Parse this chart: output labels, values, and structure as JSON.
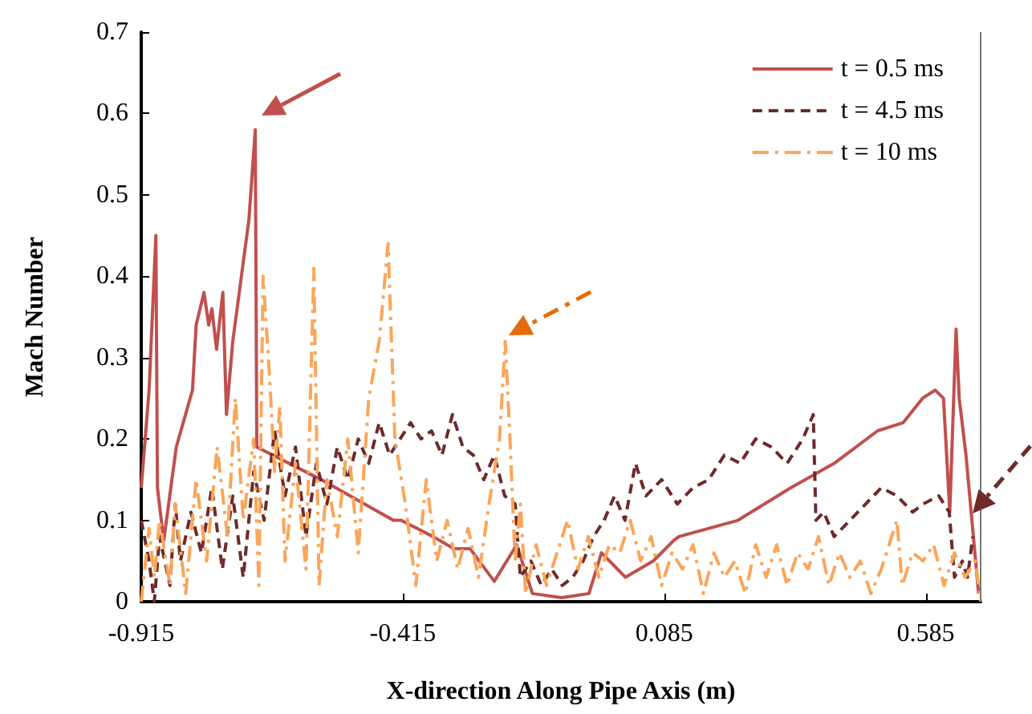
{
  "chart_data": {
    "type": "line",
    "xlabel": "X-direction Along Pipe Axis (m)",
    "ylabel": "Mach Number",
    "xlim": [
      -0.915,
      0.69
    ],
    "xticks": [
      -0.915,
      -0.415,
      0.085,
      0.585
    ],
    "ylim": [
      0,
      0.7
    ],
    "yticks": [
      0,
      0.1,
      0.2,
      0.3,
      0.4,
      0.5,
      0.6,
      0.7
    ],
    "grid": false,
    "legend": "top right",
    "marker": "none",
    "series": [
      {
        "name": "t = 0.5 ms",
        "color": "#c0504d",
        "line_style": "solid",
        "x": [
          -0.915,
          -0.9,
          -0.887,
          -0.884,
          -0.872,
          -0.848,
          -0.817,
          -0.81,
          -0.795,
          -0.786,
          -0.78,
          -0.771,
          -0.759,
          -0.752,
          -0.74,
          -0.709,
          -0.697,
          -0.694,
          -0.571,
          -0.433,
          -0.418,
          -0.357,
          -0.317,
          -0.286,
          -0.24,
          -0.197,
          -0.167,
          -0.111,
          -0.059,
          -0.035,
          0.011,
          0.064,
          0.103,
          0.113,
          0.226,
          0.327,
          0.41,
          0.493,
          0.542,
          0.579,
          0.603,
          0.619,
          0.631,
          0.643,
          0.649,
          0.662,
          0.686
        ],
        "values": [
          0.14,
          0.26,
          0.45,
          0.14,
          0.075,
          0.19,
          0.26,
          0.34,
          0.38,
          0.34,
          0.36,
          0.31,
          0.38,
          0.23,
          0.32,
          0.47,
          0.58,
          0.19,
          0.15,
          0.1,
          0.1,
          0.08,
          0.065,
          0.065,
          0.025,
          0.07,
          0.01,
          0.005,
          0.01,
          0.06,
          0.03,
          0.05,
          0.075,
          0.08,
          0.1,
          0.14,
          0.17,
          0.21,
          0.22,
          0.25,
          0.26,
          0.25,
          0.11,
          0.335,
          0.25,
          0.18,
          0.01
        ]
      },
      {
        "name": "t = 4.5 ms",
        "color": "#6e2a2a",
        "line_style": "dashed",
        "x": [
          -0.915,
          -0.9,
          -0.89,
          -0.88,
          -0.86,
          -0.85,
          -0.84,
          -0.82,
          -0.8,
          -0.78,
          -0.76,
          -0.74,
          -0.72,
          -0.7,
          -0.68,
          -0.66,
          -0.64,
          -0.62,
          -0.6,
          -0.58,
          -0.56,
          -0.54,
          -0.52,
          -0.5,
          -0.48,
          -0.46,
          -0.44,
          -0.42,
          -0.4,
          -0.38,
          -0.36,
          -0.34,
          -0.32,
          -0.3,
          -0.28,
          -0.26,
          -0.24,
          -0.22,
          -0.2,
          -0.19,
          -0.17,
          -0.15,
          -0.13,
          -0.11,
          -0.09,
          -0.07,
          -0.05,
          -0.03,
          -0.01,
          0.01,
          0.03,
          0.05,
          0.08,
          0.11,
          0.14,
          0.17,
          0.2,
          0.23,
          0.26,
          0.29,
          0.32,
          0.35,
          0.37,
          0.375,
          0.39,
          0.41,
          0.44,
          0.47,
          0.5,
          0.53,
          0.56,
          0.58,
          0.61,
          0.63,
          0.64,
          0.655,
          0.665,
          0.675
        ],
        "values": [
          0.1,
          0.05,
          0.0,
          0.08,
          0.02,
          0.12,
          0.05,
          0.11,
          0.06,
          0.14,
          0.04,
          0.13,
          0.03,
          0.16,
          0.1,
          0.21,
          0.13,
          0.19,
          0.08,
          0.17,
          0.12,
          0.19,
          0.15,
          0.2,
          0.17,
          0.22,
          0.18,
          0.2,
          0.22,
          0.2,
          0.21,
          0.18,
          0.23,
          0.19,
          0.18,
          0.15,
          0.18,
          0.13,
          0.12,
          0.03,
          0.05,
          0.02,
          0.04,
          0.02,
          0.03,
          0.05,
          0.08,
          0.1,
          0.13,
          0.1,
          0.17,
          0.13,
          0.15,
          0.12,
          0.14,
          0.15,
          0.18,
          0.17,
          0.2,
          0.19,
          0.17,
          0.2,
          0.23,
          0.1,
          0.11,
          0.08,
          0.1,
          0.12,
          0.14,
          0.13,
          0.11,
          0.12,
          0.13,
          0.11,
          0.03,
          0.05,
          0.03,
          0.08
        ]
      },
      {
        "name": "t = 10 ms",
        "color": "#f9a65a",
        "line_style": "dashdot",
        "x": [
          -0.915,
          -0.9,
          -0.89,
          -0.88,
          -0.86,
          -0.85,
          -0.83,
          -0.81,
          -0.79,
          -0.77,
          -0.75,
          -0.735,
          -0.72,
          -0.7,
          -0.69,
          -0.682,
          -0.67,
          -0.66,
          -0.65,
          -0.64,
          -0.62,
          -0.6,
          -0.585,
          -0.575,
          -0.56,
          -0.54,
          -0.52,
          -0.5,
          -0.48,
          -0.46,
          -0.443,
          -0.43,
          -0.41,
          -0.39,
          -0.37,
          -0.35,
          -0.33,
          -0.31,
          -0.29,
          -0.27,
          -0.25,
          -0.23,
          -0.219,
          -0.21,
          -0.2,
          -0.19,
          -0.18,
          -0.16,
          -0.14,
          -0.12,
          -0.1,
          -0.08,
          -0.06,
          -0.04,
          -0.02,
          0.0,
          0.02,
          0.04,
          0.06,
          0.08,
          0.1,
          0.12,
          0.14,
          0.16,
          0.18,
          0.2,
          0.22,
          0.24,
          0.26,
          0.28,
          0.3,
          0.32,
          0.34,
          0.36,
          0.38,
          0.4,
          0.42,
          0.44,
          0.46,
          0.48,
          0.5,
          0.52,
          0.53,
          0.54,
          0.56,
          0.58,
          0.6,
          0.62,
          0.64,
          0.66,
          0.68,
          0.69
        ],
        "values": [
          0.0,
          0.09,
          0.03,
          0.1,
          0.02,
          0.12,
          0.01,
          0.15,
          0.05,
          0.19,
          0.08,
          0.25,
          0.1,
          0.2,
          0.02,
          0.4,
          0.28,
          0.16,
          0.24,
          0.05,
          0.17,
          0.04,
          0.41,
          0.02,
          0.15,
          0.08,
          0.2,
          0.06,
          0.25,
          0.32,
          0.44,
          0.2,
          0.12,
          0.02,
          0.15,
          0.05,
          0.1,
          0.04,
          0.09,
          0.03,
          0.12,
          0.2,
          0.32,
          0.2,
          0.05,
          0.12,
          0.01,
          0.07,
          0.02,
          0.06,
          0.1,
          0.04,
          0.08,
          0.03,
          0.07,
          0.06,
          0.1,
          0.05,
          0.08,
          0.02,
          0.06,
          0.04,
          0.07,
          0.01,
          0.06,
          0.03,
          0.05,
          0.01,
          0.07,
          0.03,
          0.07,
          0.02,
          0.06,
          0.04,
          0.08,
          0.02,
          0.06,
          0.03,
          0.05,
          0.01,
          0.04,
          0.08,
          0.1,
          0.02,
          0.06,
          0.05,
          0.07,
          0.02,
          0.06,
          0.03,
          0.05,
          0.0
        ]
      }
    ]
  }
}
